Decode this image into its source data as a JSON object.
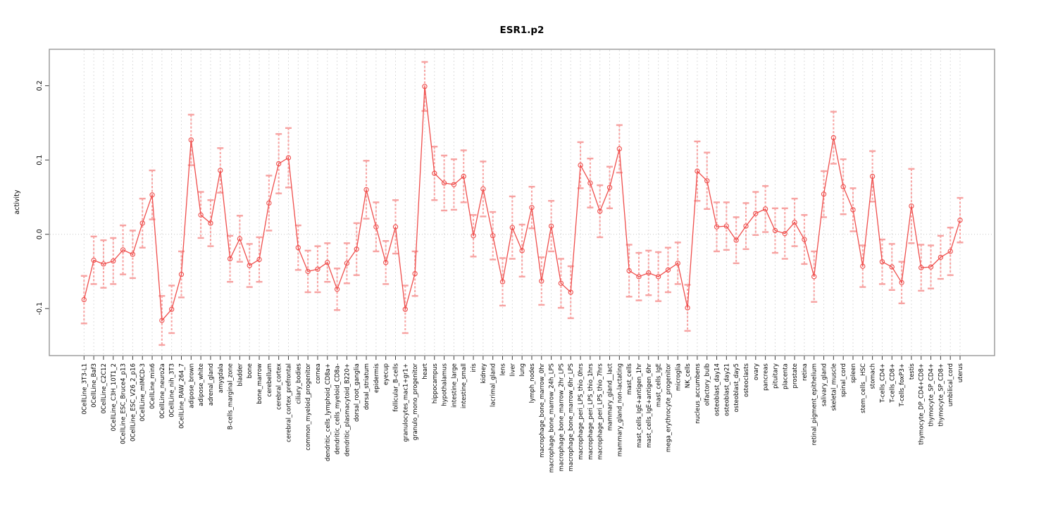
{
  "figure": {
    "title": "ESR1.p2"
  },
  "chart_data": {
    "type": "line",
    "title": "ESR1.p2",
    "xlabel": "",
    "ylabel": "activity",
    "ylim": [
      -0.16,
      0.25
    ],
    "yticks": [
      -0.1,
      0.0,
      0.1,
      0.2
    ],
    "grid": "vertical-dashed-per-category",
    "zero_line": true,
    "legend_position": "none",
    "marker": "open-circle",
    "error_bars": true,
    "colors": {
      "line": "#ef4e4c",
      "marker_stroke": "#ef4e4c",
      "error_bar": "#f7a2a1",
      "grid": "#dcdcdc",
      "zero_line": "#c8c8c8",
      "border": "#979797",
      "tick": "#3a3a3a",
      "text": "#000000"
    },
    "categories": [
      "0CellLine_3T3-L1",
      "0CellLine_Baf3",
      "0CellLine_C2C12",
      "0CellLine_C3H_10T1_2",
      "0CellLine_ESC_Bruce4_p13",
      "0CellLine_ESC_V26_2_p16",
      "0CellLine_mIMCD-3",
      "0CellLine_min6",
      "0CellLine_neuro2a",
      "0CellLine_nih_3T3",
      "0CellLine_RAW_264_7",
      "adipose_brown",
      "adipose_white",
      "adrenal_gland",
      "amygdala",
      "B-cells_marginal_zone",
      "bladder",
      "bone",
      "bone_marrow",
      "cerebellum",
      "cerebral_cortex",
      "cerebral_cortex_prefrontal",
      "ciliary_bodies",
      "common_myeloid_progenitor",
      "cornea",
      "dendritic_cells_lymphoid_CD8a+",
      "dendritic_cells_myeloid_CD8a-",
      "dendritic_plasmacytoid_B220+",
      "dorsal_root_ganglia",
      "dorsal_striatum",
      "epidermis",
      "eyecup",
      "follicular_B-cells",
      "granulocytes_mac1+gr1+",
      "granulo_mono_progenitor",
      "heart",
      "hippocampus",
      "hypothalamus",
      "intestine_large",
      "intestine_small",
      "iris",
      "kidney",
      "lacrimal_gland",
      "lens",
      "liver",
      "lung",
      "lymph_nodes",
      "macrophage_bone_marrow_0hr",
      "macrophage_bone_marrow_24h_LPS",
      "macrophage_bone_marrow_2hr_LPS",
      "macrophage_bone_marrow_6hr_LPS",
      "macrophage_peri_LPS_thio_0hrs",
      "macrophage_peri_LPS_thio_1hrs",
      "macrophage_peri_LPS_thio_7hrs",
      "mammary_gland__lact",
      "mammary_gland_non-lactating",
      "mast_cells",
      "mast_cells_IgE+antigen_1hr",
      "mast_cells_IgE+antigen_6hr",
      "mast_cells_IgE",
      "mega_erythrocyte_progenitor",
      "microglia",
      "NK_cells",
      "nucleus_accumbens",
      "olfactory_bulb",
      "osteoblast_day14",
      "osteoblast_day21",
      "osteoblast_day5",
      "osteoclasts",
      "ovary",
      "pancreas",
      "pituitary",
      "placenta",
      "prostate",
      "retina",
      "retinal_pigment_epithelium",
      "salivary_gland",
      "skeletal_muscle",
      "spinal_cord",
      "spleen",
      "stem_cells__HSC",
      "stomach",
      "T-cells_CD4+",
      "T-cells_CD8+",
      "T-cells_foxP3+",
      "testis",
      "thymocyte_DP_CD4+CD8+",
      "thymocyte_SP_CD4+",
      "thymocyte_SP_CD8+",
      "umbilical_cord",
      "uterus"
    ],
    "series": [
      {
        "name": "activity",
        "values": [
          -0.088,
          -0.035,
          -0.04,
          -0.036,
          -0.021,
          -0.027,
          0.015,
          0.053,
          -0.116,
          -0.101,
          -0.054,
          0.127,
          0.026,
          0.015,
          0.086,
          -0.033,
          -0.006,
          -0.042,
          -0.034,
          0.042,
          0.095,
          0.103,
          -0.018,
          -0.05,
          -0.047,
          -0.038,
          -0.074,
          -0.039,
          -0.02,
          0.06,
          0.01,
          -0.038,
          0.01,
          -0.101,
          -0.053,
          0.199,
          0.082,
          0.069,
          0.067,
          0.078,
          -0.002,
          0.061,
          -0.002,
          -0.064,
          0.009,
          -0.022,
          0.036,
          -0.063,
          0.011,
          -0.066,
          -0.078,
          0.093,
          0.069,
          0.031,
          0.063,
          0.115,
          -0.049,
          -0.057,
          -0.052,
          -0.057,
          -0.048,
          -0.039,
          -0.099,
          0.085,
          0.072,
          0.01,
          0.011,
          -0.008,
          0.011,
          0.028,
          0.034,
          0.005,
          0.001,
          0.016,
          -0.007,
          -0.057,
          0.054,
          0.13,
          0.064,
          0.033,
          -0.043,
          0.078,
          -0.037,
          -0.044,
          -0.065,
          0.038,
          -0.045,
          -0.044,
          -0.031,
          -0.023,
          0.019
        ],
        "errors": [
          0.032,
          0.032,
          0.032,
          0.031,
          0.033,
          0.032,
          0.033,
          0.033,
          0.033,
          0.032,
          0.031,
          0.034,
          0.031,
          0.031,
          0.03,
          0.031,
          0.031,
          0.029,
          0.03,
          0.037,
          0.04,
          0.04,
          0.03,
          0.028,
          0.031,
          0.026,
          0.028,
          0.027,
          0.035,
          0.039,
          0.033,
          0.029,
          0.036,
          0.032,
          0.03,
          0.033,
          0.036,
          0.037,
          0.034,
          0.035,
          0.028,
          0.037,
          0.032,
          0.032,
          0.042,
          0.035,
          0.028,
          0.032,
          0.034,
          0.033,
          0.035,
          0.031,
          0.033,
          0.035,
          0.028,
          0.032,
          0.035,
          0.032,
          0.03,
          0.033,
          0.03,
          0.028,
          0.031,
          0.04,
          0.038,
          0.033,
          0.032,
          0.031,
          0.031,
          0.029,
          0.031,
          0.03,
          0.034,
          0.032,
          0.033,
          0.034,
          0.031,
          0.035,
          0.037,
          0.029,
          0.028,
          0.034,
          0.03,
          0.031,
          0.028,
          0.05,
          0.031,
          0.029,
          0.029,
          0.032,
          0.03
        ]
      }
    ]
  }
}
